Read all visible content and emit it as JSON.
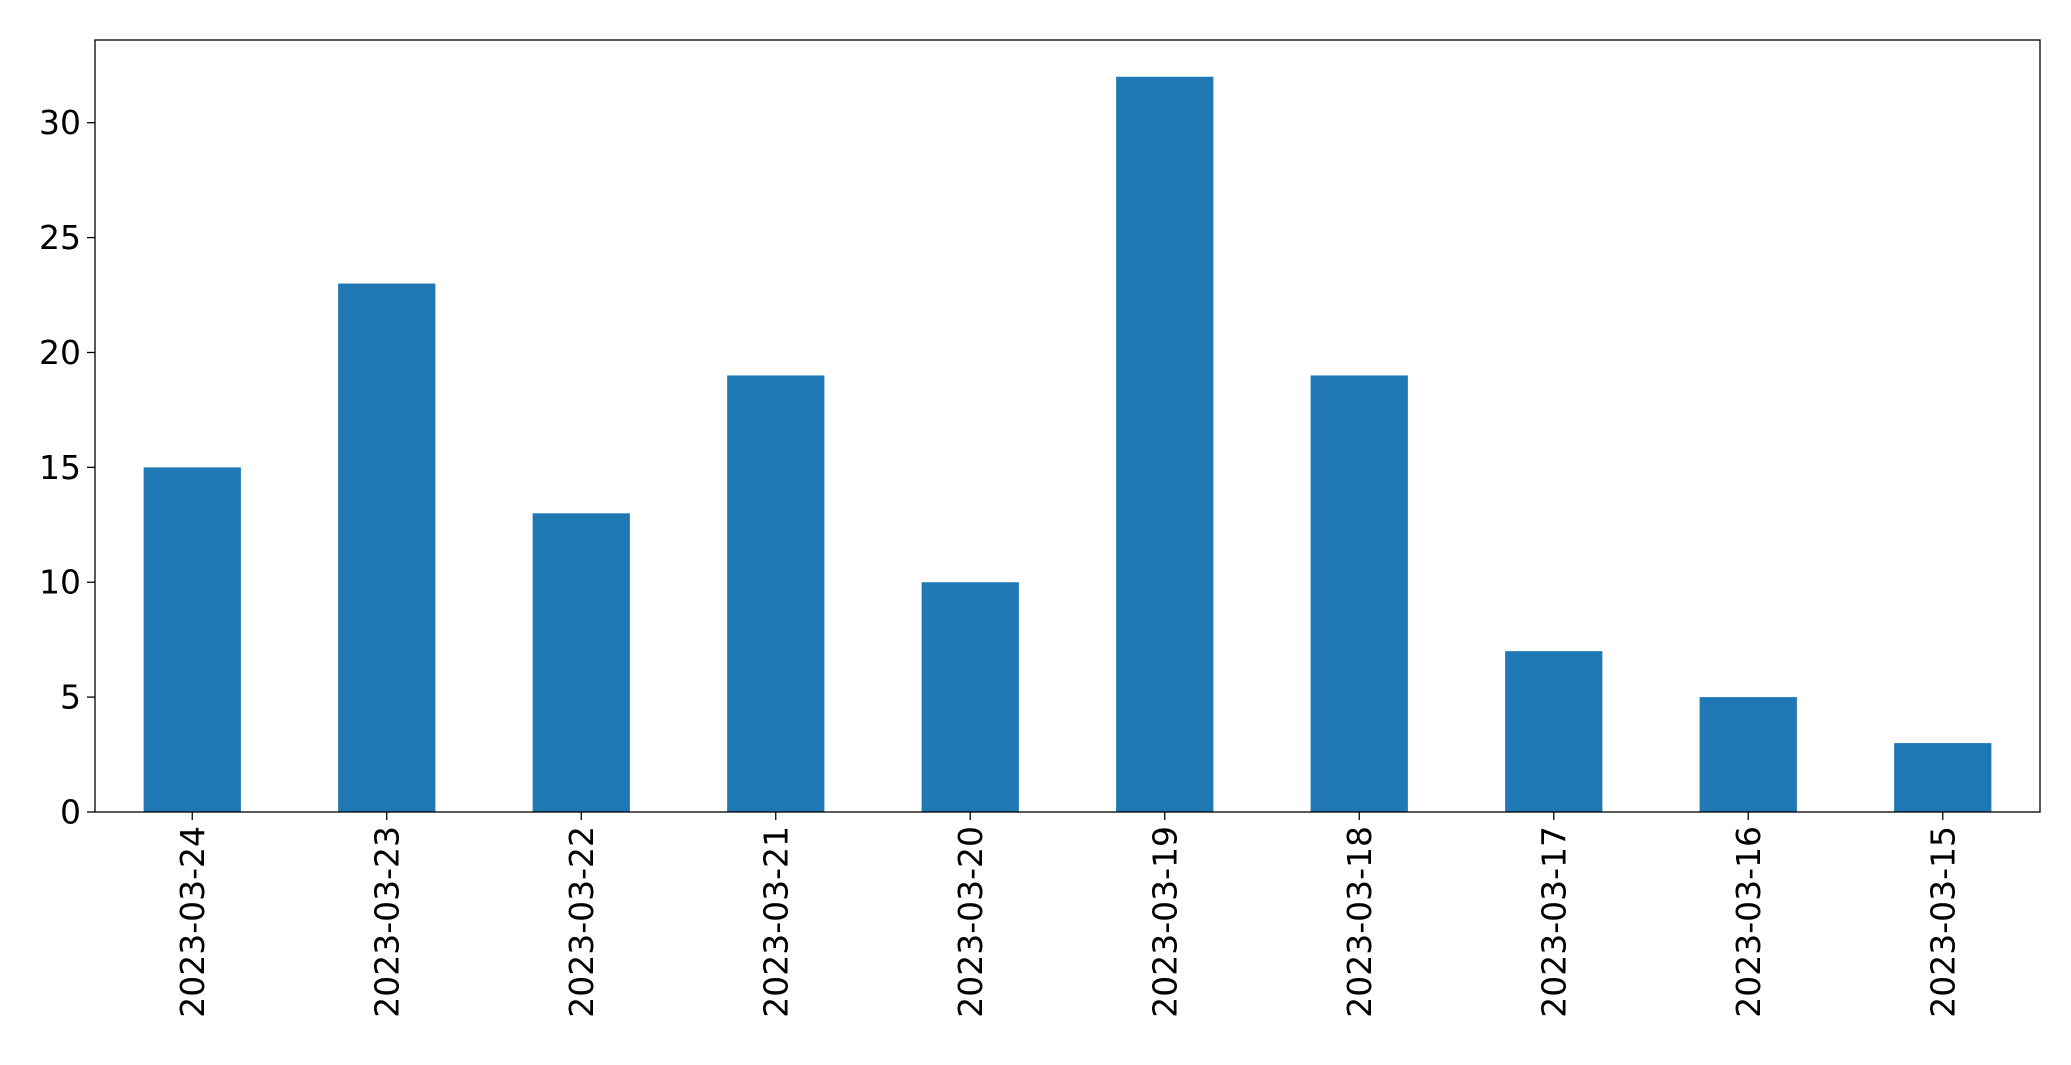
{
  "chart_data": {
    "type": "bar",
    "title": "",
    "xlabel": "",
    "ylabel": "",
    "categories": [
      "2023-03-24",
      "2023-03-23",
      "2023-03-22",
      "2023-03-21",
      "2023-03-20",
      "2023-03-19",
      "2023-03-18",
      "2023-03-17",
      "2023-03-16",
      "2023-03-15"
    ],
    "values": [
      15,
      23,
      13,
      19,
      10,
      32,
      19,
      7,
      5,
      3
    ],
    "ylim": [
      0,
      33.6
    ],
    "yticks": [
      0,
      5,
      10,
      15,
      20,
      25,
      30
    ],
    "grid": false,
    "legend": "none",
    "bar_color": "#1f77b4"
  }
}
